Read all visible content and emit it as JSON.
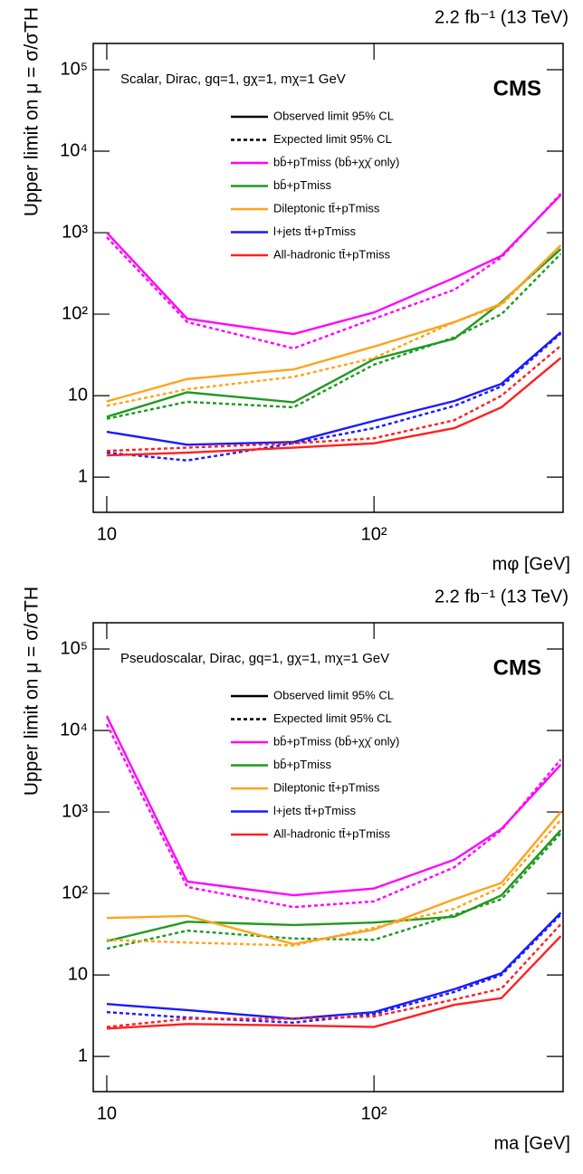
{
  "chart_data": [
    {
      "type": "line",
      "lumi": "2.2 fb⁻¹ (13 TeV)",
      "experiment": "CMS",
      "subtitle": "Scalar, Dirac, gq=1, gχ=1, mχ=1 GeV",
      "x_label": "mφ [GeV]",
      "y_label": "Upper limit on μ = σ/σTH",
      "log_x": true,
      "log_y": true,
      "xlim": [
        8.9,
        510
      ],
      "ylim": [
        0.37,
        210000
      ],
      "xticks": [
        10,
        {
          "value": 100,
          "label": "10²"
        }
      ],
      "yticks": [
        1,
        10,
        {
          "value": 100,
          "label": "10²"
        },
        {
          "value": 1000,
          "label": "10³"
        },
        {
          "value": 10000,
          "label": "10⁴"
        },
        {
          "value": 100000,
          "label": "10⁵"
        }
      ],
      "line_styles": [
        {
          "name": "Observed limit 95% CL",
          "dash": "solid"
        },
        {
          "name": "Expected limit 95% CL",
          "dash": "dotted"
        }
      ],
      "x": [
        10,
        20,
        50,
        100,
        200,
        300,
        500
      ],
      "series": [
        {
          "name": "bb̄+pTmiss (bb̄+χχ̄ only)",
          "color": "#ff00ff",
          "values": [
            1000,
            88,
            57,
            105,
            280,
            520,
            2900
          ],
          "expected": [
            880,
            80,
            38,
            88,
            200,
            500,
            3000
          ]
        },
        {
          "name": "bb̄+pTmiss",
          "color": "#1e9a1e",
          "values": [
            5.5,
            11,
            8.3,
            28,
            50,
            140,
            630
          ],
          "expected": [
            5.2,
            8.4,
            7.2,
            24,
            52,
            100,
            550
          ]
        },
        {
          "name": "Dileptonic tt̄+pTmiss",
          "color": "#ffa31a",
          "values": [
            8.5,
            16,
            21,
            40,
            80,
            135,
            700
          ],
          "expected": [
            7.5,
            12,
            17,
            29,
            80,
            130,
            700
          ]
        },
        {
          "name": "l+jets tt̄+pTmiss",
          "color": "#1a1aff",
          "values": [
            3.6,
            2.5,
            2.7,
            4.9,
            8.6,
            14,
            60
          ],
          "expected": [
            2.0,
            1.6,
            2.6,
            4,
            7.5,
            13,
            58
          ]
        },
        {
          "name": "All-hadronic tt̄+pTmiss",
          "color": "#ff2020",
          "values": [
            1.85,
            2.0,
            2.3,
            2.6,
            4,
            7.2,
            29
          ],
          "expected": [
            2.1,
            2.3,
            2.6,
            3,
            5,
            10,
            41
          ]
        }
      ]
    },
    {
      "type": "line",
      "lumi": "2.2 fb⁻¹ (13 TeV)",
      "experiment": "CMS",
      "subtitle": "Pseudoscalar, Dirac, gq=1, gχ=1, mχ=1 GeV",
      "x_label": "ma [GeV]",
      "y_label": "Upper limit on μ = σ/σTH",
      "log_x": true,
      "log_y": true,
      "xlim": [
        8.9,
        510
      ],
      "ylim": [
        0.37,
        210000
      ],
      "xticks": [
        10,
        {
          "value": 100,
          "label": "10²"
        }
      ],
      "yticks": [
        1,
        10,
        {
          "value": 100,
          "label": "10²"
        },
        {
          "value": 1000,
          "label": "10³"
        },
        {
          "value": 10000,
          "label": "10⁴"
        },
        {
          "value": 100000,
          "label": "10⁵"
        }
      ],
      "line_styles": [
        {
          "name": "Observed limit 95% CL",
          "dash": "solid"
        },
        {
          "name": "Expected limit 95% CL",
          "dash": "dotted"
        }
      ],
      "x": [
        10,
        20,
        50,
        100,
        200,
        300,
        500
      ],
      "series": [
        {
          "name": "bb̄+pTmiss (bb̄+χχ̄ only)",
          "color": "#ff00ff",
          "values": [
            15000,
            140,
            95,
            115,
            260,
            620,
            3800
          ],
          "expected": [
            12000,
            120,
            68,
            80,
            210,
            600,
            4400
          ]
        },
        {
          "name": "bb̄+pTmiss",
          "color": "#1e9a1e",
          "values": [
            26,
            45,
            41,
            44,
            52,
            95,
            600
          ],
          "expected": [
            21,
            35,
            28,
            27,
            55,
            85,
            550
          ]
        },
        {
          "name": "Dileptonic tt̄+pTmiss",
          "color": "#ffa31a",
          "values": [
            50,
            53,
            24,
            36,
            85,
            135,
            1000
          ],
          "expected": [
            27,
            25,
            23,
            38,
            65,
            120,
            800
          ]
        },
        {
          "name": "l+jets tt̄+pTmiss",
          "color": "#1a1aff",
          "values": [
            4.4,
            3.7,
            2.9,
            3.5,
            6.7,
            10.5,
            58
          ],
          "expected": [
            3.5,
            3.0,
            2.6,
            3.3,
            6.2,
            10,
            55
          ]
        },
        {
          "name": "All-hadronic tt̄+pTmiss",
          "color": "#ff2020",
          "values": [
            2.2,
            2.5,
            2.4,
            2.3,
            4.3,
            5.2,
            30
          ],
          "expected": [
            2.3,
            2.9,
            2.9,
            3.1,
            5.0,
            6.8,
            42
          ]
        }
      ]
    }
  ]
}
